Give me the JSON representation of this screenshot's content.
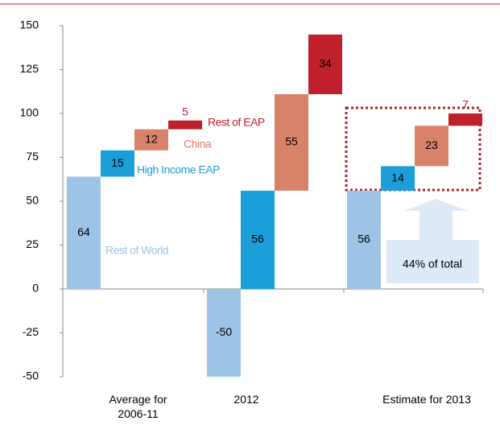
{
  "chart_data": {
    "type": "waterfall",
    "categories": [
      "Average for 2006-11",
      "2012",
      "Estimate for 2013"
    ],
    "series": [
      {
        "name": "Rest of World",
        "color": "#9dc3e6",
        "values": [
          64,
          -50,
          56
        ]
      },
      {
        "name": "High Income EAP",
        "color": "#1a9fd9",
        "values": [
          15,
          56,
          14
        ]
      },
      {
        "name": "China",
        "color": "#d9826a",
        "values": [
          12,
          55,
          23
        ]
      },
      {
        "name": "Rest of EAP",
        "color": "#c0202b",
        "values": [
          5,
          34,
          7
        ]
      }
    ],
    "ylim": [
      -50,
      150
    ],
    "yticks": [
      -50,
      -25,
      0,
      25,
      50,
      75,
      100,
      125,
      150
    ],
    "grid": false,
    "annotation": "44% of total"
  }
}
